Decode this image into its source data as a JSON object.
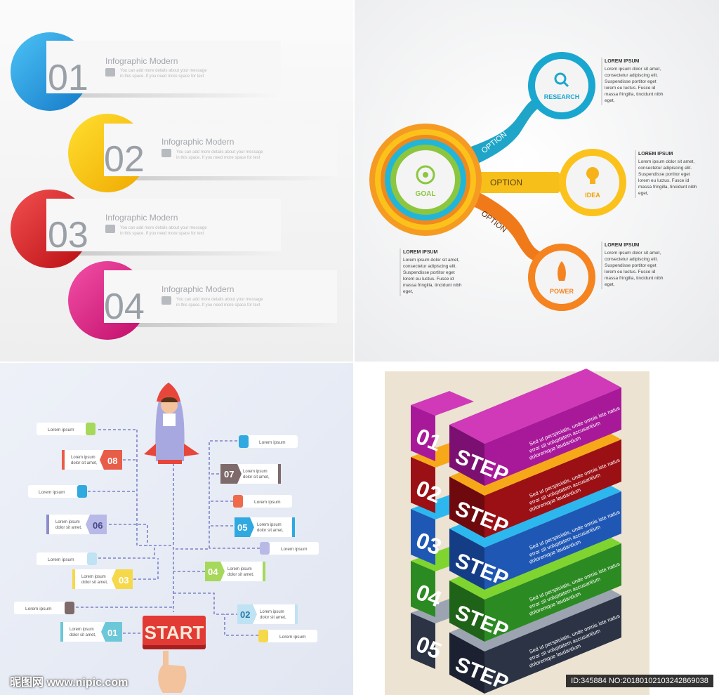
{
  "panel1": {
    "items": [
      {
        "num": "01",
        "title": "Infographic Modern",
        "desc1": "You can add more details about your message",
        "desc2": "in this space. If you need more space for text",
        "color": "#2aa9e8"
      },
      {
        "num": "02",
        "title": "Infographic Modern",
        "desc1": "You can add more details about your message",
        "desc2": "in this space. If you need more space for text",
        "color": "#f5c000"
      },
      {
        "num": "03",
        "title": "Infographic Modern",
        "desc1": "You can add more details about your message",
        "desc2": "in this space. If you need more space for text",
        "color": "#e2262b"
      },
      {
        "num": "04",
        "title": "Infographic Modern",
        "desc1": "You can add more details about your message",
        "desc2": "in this space. If you need more space for text",
        "color": "#e3197e"
      }
    ]
  },
  "panel2": {
    "goal": "GOAL",
    "research": "RESEARCH",
    "idea": "IDEA",
    "power": "POWER",
    "option1": "OPTION",
    "option2": "OPTION",
    "option3": "OPTION",
    "heading": "LOREM IPSUM",
    "text_research": [
      "Lorem ipsum dolor sit amet,",
      "consectetur adipiscing elit.",
      "Suspendisse portitor eget",
      "lorem eu luctus. Fusce id",
      "massa fringilla, tincidunt nibh",
      "eget,"
    ],
    "text_idea": [
      "Lorem ipsum dolor sit amet,",
      "consectetur adipiscing elit.",
      "Suspendisse portitor eget",
      "lorem eu luctus. Fusce id",
      "massa fringilla, tincidunt nibh",
      "eget,"
    ],
    "text_power": [
      "Lorem ipsum dolor sit amet,",
      "consectetur adipiscing elit.",
      "Suspendisse portitor eget",
      "lorem eu luctus. Fusce id",
      "massa fringilla, tincidunt nibh",
      "eget,"
    ],
    "text_goal": [
      "Lorem ipsum dolor sit amet,",
      "consectetur adipiscing elit.",
      "Suspendisse portitor eget",
      "lorem eu luctus. Fusce id",
      "massa fringilla, tincidunt nibh",
      "eget,"
    ]
  },
  "panel3": {
    "start": "START",
    "lorem": "Lorem ipsum",
    "num_line1": "Lorem ipsum",
    "num_line2": "dolor sit amet,",
    "numbers": [
      "08",
      "07",
      "06",
      "05",
      "04",
      "03",
      "02",
      "01"
    ]
  },
  "panel4": {
    "rows": [
      {
        "num": "01",
        "word": "STEP",
        "l1": "Sed ut perspiciatis, unde omnis iste natus",
        "l2": "error sit voluptatem accusantium",
        "l3": "doloremque laudantium",
        "top": "#d03ab8",
        "front": "#a8199a",
        "side": "#7c1072",
        "dark": "#5e0b56"
      },
      {
        "num": "02",
        "word": "STEP",
        "l1": "Sed ut perspiciatis, unde omnis iste natus",
        "l2": "error sit voluptatem accusantium",
        "l3": "doloremque laudantium",
        "top": "#f6a818",
        "front": "#9b1015",
        "side": "#6e0a0e",
        "dark": "#c7851a"
      },
      {
        "num": "03",
        "word": "STEP",
        "l1": "Sed ut perspiciatis, unde omnis iste natus",
        "l2": "error sit voluptatem accusantium",
        "l3": "doloremque laudantium",
        "top": "#2cb8ee",
        "front": "#1f57b4",
        "side": "#153d86",
        "dark": "#1c8fc4"
      },
      {
        "num": "04",
        "word": "STEP",
        "l1": "Sed ut perspiciatis, unde omnis iste natus",
        "l2": "error sit voluptatem accusantium",
        "l3": "doloremque laudantium",
        "top": "#7fd430",
        "front": "#2c8a22",
        "side": "#1f6318",
        "dark": "#5ca722"
      },
      {
        "num": "05",
        "word": "STEP",
        "l1": "Sed ut perspiciatis, unde omnis iste natus",
        "l2": "error sit voluptatem accusantium",
        "l3": "doloremque laudantium",
        "top": "#9ca4b2",
        "front": "#2c3345",
        "side": "#1b2130",
        "dark": "#6f7788"
      }
    ]
  },
  "footer": {
    "watermark": "昵图网 www.nipic.com",
    "image_id": "ID:345884 NO:20180102103242869038"
  }
}
